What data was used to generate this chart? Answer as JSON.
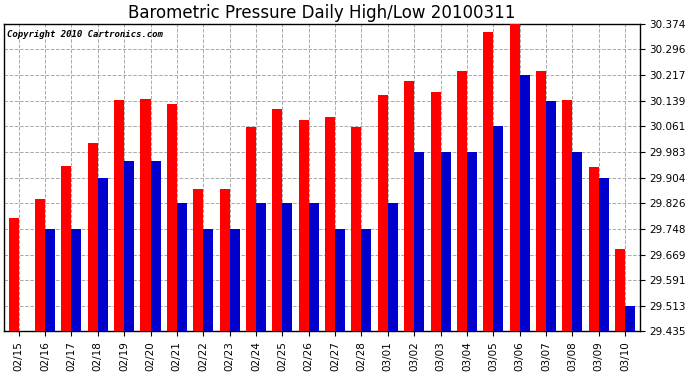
{
  "title": "Barometric Pressure Daily High/Low 20100311",
  "copyright": "Copyright 2010 Cartronics.com",
  "dates": [
    "02/15",
    "02/16",
    "02/17",
    "02/18",
    "02/19",
    "02/20",
    "02/21",
    "02/22",
    "02/23",
    "02/24",
    "02/25",
    "02/26",
    "02/27",
    "02/28",
    "03/01",
    "03/02",
    "03/03",
    "03/04",
    "03/05",
    "03/06",
    "03/07",
    "03/08",
    "03/09",
    "03/10"
  ],
  "highs": [
    29.78,
    29.84,
    29.94,
    30.01,
    30.14,
    30.145,
    30.13,
    29.87,
    29.87,
    30.06,
    30.115,
    30.08,
    30.09,
    30.06,
    30.155,
    30.2,
    30.165,
    30.23,
    30.35,
    30.374,
    30.23,
    30.14,
    29.935,
    29.685
  ],
  "lows": [
    29.435,
    29.748,
    29.748,
    29.904,
    29.956,
    29.956,
    29.826,
    29.748,
    29.748,
    29.826,
    29.826,
    29.826,
    29.748,
    29.748,
    29.826,
    29.983,
    29.983,
    29.983,
    30.061,
    30.217,
    30.139,
    29.983,
    29.904,
    29.513
  ],
  "bar_color_high": "#FF0000",
  "bar_color_low": "#0000CC",
  "background_color": "#FFFFFF",
  "plot_bg_color": "#FFFFFF",
  "grid_color": "#AAAAAA",
  "ylim_min": 29.435,
  "ylim_max": 30.374,
  "yticks": [
    29.435,
    29.513,
    29.591,
    29.669,
    29.748,
    29.826,
    29.904,
    29.983,
    30.061,
    30.139,
    30.217,
    30.296,
    30.374
  ],
  "title_fontsize": 12,
  "tick_fontsize": 7.5,
  "copyright_fontsize": 6.5
}
